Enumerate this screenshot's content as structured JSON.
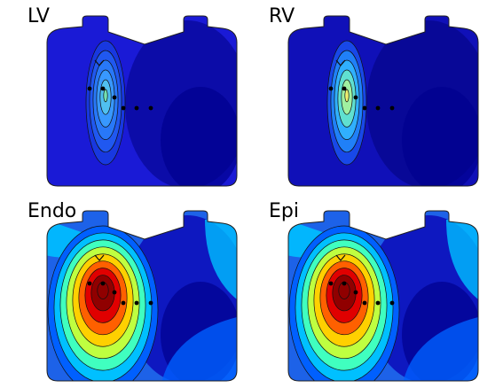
{
  "panels": [
    {
      "id": "lv",
      "label": "LV",
      "hot": 0.38,
      "background": "#1a1ad6",
      "dark_region": "#0a0aa0",
      "peak_color": "#74e0b0"
    },
    {
      "id": "rv",
      "label": "RV",
      "hot": 0.55,
      "background": "#1010b8",
      "dark_region": "#070790",
      "peak_color": "#f0f070"
    },
    {
      "id": "endo",
      "label": "Endo",
      "hot": 1.0,
      "background": "#1d62e8",
      "dark_region": "#0c0cb8",
      "peak_color": "#cc0000"
    },
    {
      "id": "epi",
      "label": "Epi",
      "hot": 1.0,
      "background": "#1d62e8",
      "dark_region": "#0c0cb8",
      "peak_color": "#cc0000"
    }
  ],
  "colormap": [
    "#00008f",
    "#0000ff",
    "#0060ff",
    "#00c0ff",
    "#40ffbf",
    "#bfff40",
    "#ffd000",
    "#ff6000",
    "#e00000",
    "#900000"
  ]
}
